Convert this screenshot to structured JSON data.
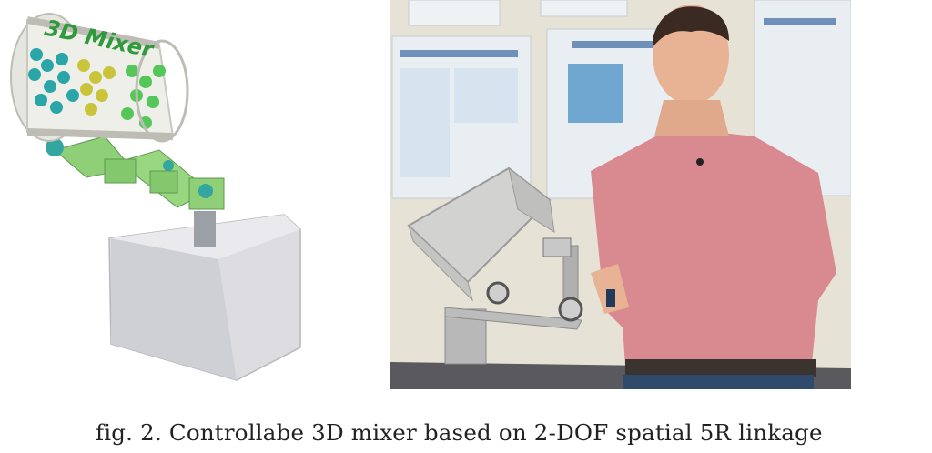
{
  "figure": {
    "left_render": {
      "label_text": "3D Mixer",
      "colors": {
        "drum_frame": "#cfcfc8",
        "balls_teal": "#2aa5a8",
        "balls_yellow": "#c9c43a",
        "balls_green": "#55c658",
        "links": "#8fcf78",
        "joint": "#33a6a0",
        "base": "#d9d9de",
        "label": "#2f9a3b"
      }
    },
    "right_photo": {
      "colors": {
        "wall": "#e6e2d6",
        "poster": "#e9eef3",
        "shirt": "#d98a90",
        "skin": "#e7b394",
        "hair": "#3a2a22",
        "metal": "#b8b8b8",
        "table": "#5a5a5e"
      }
    },
    "caption": "fig. 2. Controllabe 3D mixer based on 2-DOF spatial 5R linkage"
  }
}
